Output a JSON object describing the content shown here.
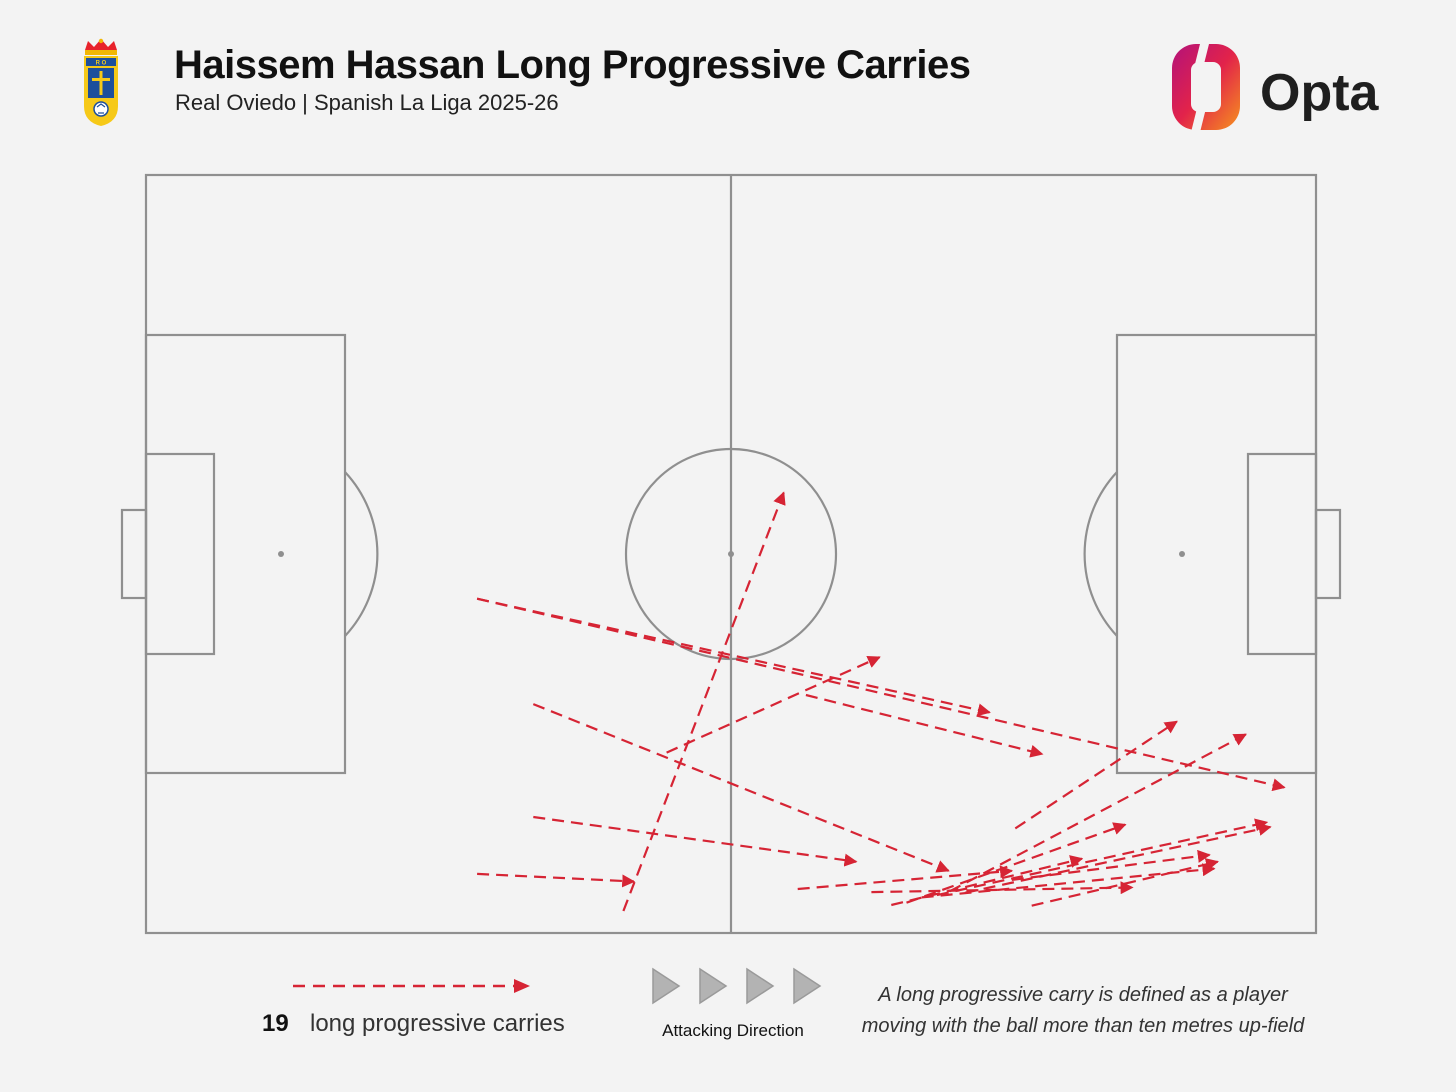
{
  "header": {
    "title": "Haissem Hassan Long Progressive Carries",
    "subtitle": "Real Oviedo | Spanish La Liga 2025-26",
    "crest_icon": "real-oviedo-crest-icon",
    "brand": "Opta"
  },
  "colors": {
    "background": "#f3f3f3",
    "pitch_lines": "#8f8f8f",
    "carry": "#d62434",
    "direction_triangles": "#b3b3b3",
    "opta_gradient": [
      "#b3127a",
      "#e2234a",
      "#f6921e"
    ]
  },
  "chart_data": {
    "type": "pitch-map",
    "pitch_length": 100,
    "pitch_width": 100,
    "attacking_direction": "left-to-right",
    "carries": [
      {
        "start": [
          28.3,
          44.1
        ],
        "end": [
          72.1,
          29.1
        ]
      },
      {
        "start": [
          28.3,
          44.1
        ],
        "end": [
          97.3,
          19.2
        ]
      },
      {
        "start": [
          56.4,
          31.4
        ],
        "end": [
          76.6,
          23.6
        ]
      },
      {
        "start": [
          33.1,
          30.2
        ],
        "end": [
          68.6,
          8.2
        ]
      },
      {
        "start": [
          33.1,
          15.3
        ],
        "end": [
          60.7,
          9.4
        ]
      },
      {
        "start": [
          28.3,
          7.8
        ],
        "end": [
          41.7,
          6.8
        ]
      },
      {
        "start": [
          40.8,
          2.9
        ],
        "end": [
          54.5,
          58.1
        ]
      },
      {
        "start": [
          44.5,
          23.8
        ],
        "end": [
          62.7,
          36.4
        ]
      },
      {
        "start": [
          55.7,
          5.8
        ],
        "end": [
          74.0,
          8.2
        ]
      },
      {
        "start": [
          62.0,
          5.4
        ],
        "end": [
          84.3,
          6.0
        ]
      },
      {
        "start": [
          63.7,
          3.7
        ],
        "end": [
          80.0,
          9.8
        ]
      },
      {
        "start": [
          65.0,
          4.0
        ],
        "end": [
          83.7,
          14.3
        ]
      },
      {
        "start": [
          66.3,
          4.7
        ],
        "end": [
          91.3,
          8.5
        ]
      },
      {
        "start": [
          67.6,
          5.0
        ],
        "end": [
          95.8,
          14.6
        ]
      },
      {
        "start": [
          68.7,
          5.5
        ],
        "end": [
          94.0,
          26.2
        ]
      },
      {
        "start": [
          70.0,
          5.3
        ],
        "end": [
          96.1,
          14.0
        ]
      },
      {
        "start": [
          74.0,
          7.0
        ],
        "end": [
          90.9,
          10.3
        ]
      },
      {
        "start": [
          75.7,
          3.6
        ],
        "end": [
          91.6,
          9.4
        ]
      },
      {
        "start": [
          74.3,
          13.8
        ],
        "end": [
          88.1,
          27.9
        ]
      }
    ]
  },
  "legend": {
    "count": "19",
    "label": "long progressive carries",
    "direction_label": "Attacking Direction",
    "direction_icon": "play-triangle-icon"
  },
  "definition": {
    "line1": "A long progressive carry is defined as a player",
    "line2": "moving with the ball more than ten metres up-field"
  }
}
